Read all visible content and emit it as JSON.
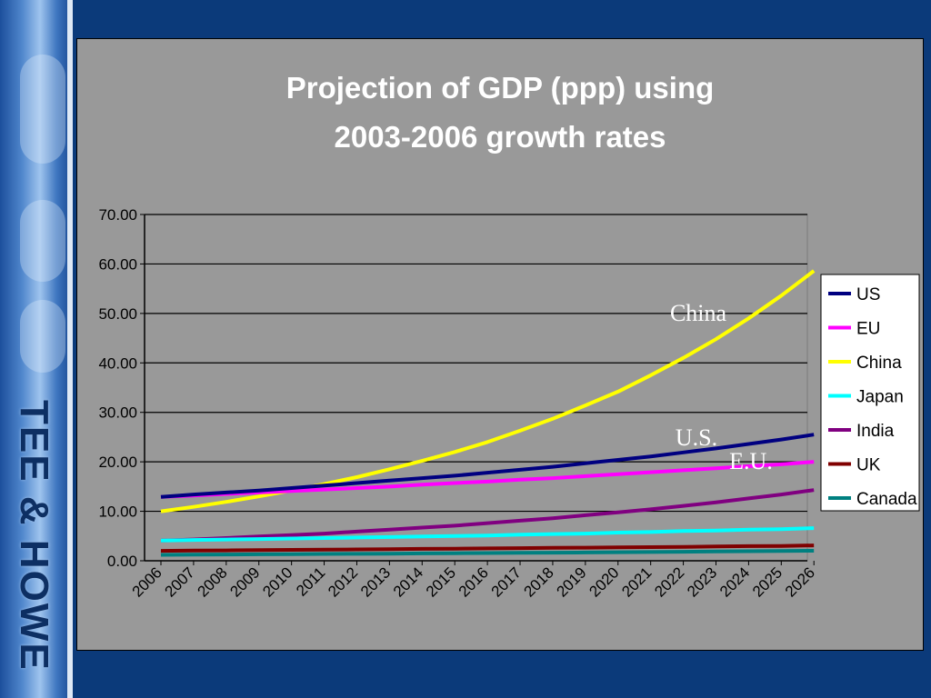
{
  "branding": {
    "side_text": "TEE & HOWE"
  },
  "colors": {
    "background": "#0b3a7a",
    "panel": "#999999",
    "plot": "#999999",
    "title": "#ffffff"
  },
  "chart_data": {
    "type": "line",
    "title_lines": [
      "Projection of GDP (ppp) using",
      "2003-2006 growth rates"
    ],
    "xlabel": "",
    "ylabel": "",
    "categories": [
      "2006",
      "2007",
      "2008",
      "2009",
      "2010",
      "2011",
      "2012",
      "2013",
      "2014",
      "2015",
      "2016",
      "2017",
      "2018",
      "2019",
      "2020",
      "2021",
      "2022",
      "2023",
      "2024",
      "2025",
      "2026"
    ],
    "ylim": [
      0,
      70
    ],
    "yticks": [
      "0.00",
      "10.00",
      "20.00",
      "30.00",
      "40.00",
      "50.00",
      "60.00",
      "70.00"
    ],
    "grid": true,
    "legend_position": "right",
    "series": [
      {
        "name": "US",
        "color": "#000080",
        "values": [
          12.9,
          13.4,
          13.8,
          14.2,
          14.7,
          15.2,
          15.7,
          16.2,
          16.7,
          17.2,
          17.8,
          18.4,
          19.0,
          19.7,
          20.4,
          21.1,
          21.9,
          22.7,
          23.6,
          24.5,
          25.5
        ]
      },
      {
        "name": "EU",
        "color": "#ff00ff",
        "values": [
          12.9,
          13.2,
          13.5,
          13.8,
          14.1,
          14.4,
          14.7,
          15.0,
          15.4,
          15.7,
          16.0,
          16.4,
          16.7,
          17.1,
          17.5,
          17.9,
          18.3,
          18.7,
          19.1,
          19.5,
          20.0
        ]
      },
      {
        "name": "China",
        "color": "#ffff00",
        "values": [
          10.0,
          10.9,
          11.9,
          13.0,
          14.2,
          15.5,
          16.9,
          18.5,
          20.2,
          22.0,
          24.0,
          26.3,
          28.7,
          31.4,
          34.2,
          37.5,
          41.0,
          44.8,
          49.0,
          53.6,
          58.6
        ]
      },
      {
        "name": "Japan",
        "color": "#00ffff",
        "values": [
          4.1,
          4.2,
          4.3,
          4.4,
          4.5,
          4.6,
          4.7,
          4.8,
          4.9,
          5.0,
          5.1,
          5.3,
          5.4,
          5.5,
          5.7,
          5.8,
          6.0,
          6.1,
          6.3,
          6.4,
          6.6
        ]
      },
      {
        "name": "India",
        "color": "#800080",
        "values": [
          4.1,
          4.3,
          4.6,
          4.9,
          5.2,
          5.5,
          5.9,
          6.3,
          6.7,
          7.1,
          7.6,
          8.1,
          8.6,
          9.2,
          9.8,
          10.4,
          11.1,
          11.8,
          12.6,
          13.4,
          14.3
        ]
      },
      {
        "name": "UK",
        "color": "#800000",
        "values": [
          2.0,
          2.05,
          2.1,
          2.15,
          2.2,
          2.25,
          2.3,
          2.35,
          2.4,
          2.45,
          2.5,
          2.55,
          2.6,
          2.65,
          2.7,
          2.75,
          2.8,
          2.9,
          2.95,
          3.0,
          3.1
        ]
      },
      {
        "name": "Canada",
        "color": "#008080",
        "values": [
          1.2,
          1.23,
          1.26,
          1.3,
          1.33,
          1.37,
          1.4,
          1.44,
          1.48,
          1.52,
          1.56,
          1.6,
          1.64,
          1.68,
          1.73,
          1.77,
          1.82,
          1.87,
          1.92,
          1.97,
          2.02
        ]
      }
    ],
    "annotations": [
      "China",
      "U.S.",
      "E.U."
    ]
  }
}
